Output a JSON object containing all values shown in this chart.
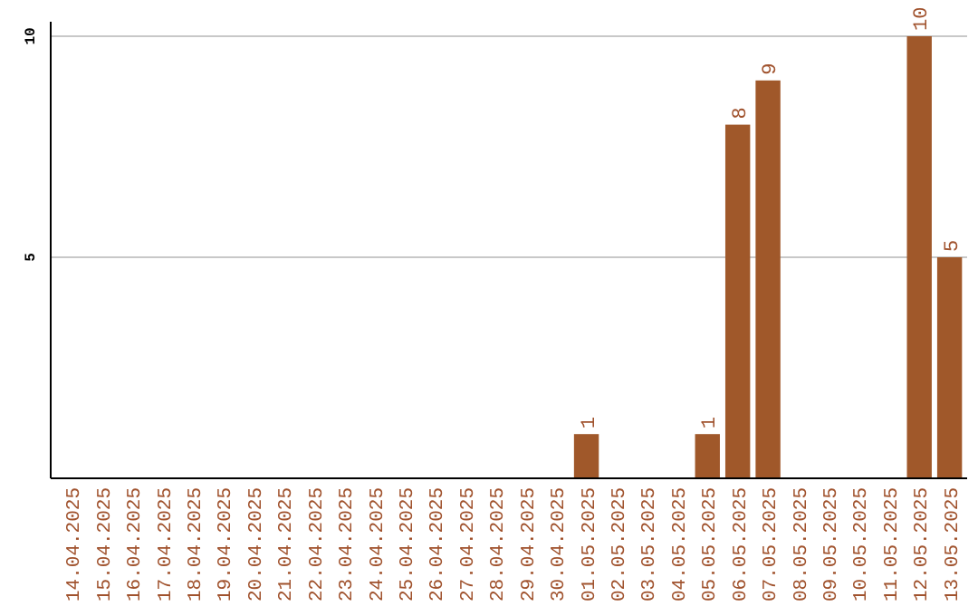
{
  "chart_data": {
    "type": "bar",
    "categories": [
      "14.04.2025",
      "15.04.2025",
      "16.04.2025",
      "17.04.2025",
      "18.04.2025",
      "19.04.2025",
      "20.04.2025",
      "21.04.2025",
      "22.04.2025",
      "23.04.2025",
      "24.04.2025",
      "25.04.2025",
      "26.04.2025",
      "27.04.2025",
      "28.04.2025",
      "29.04.2025",
      "30.04.2025",
      "01.05.2025",
      "02.05.2025",
      "03.05.2025",
      "04.05.2025",
      "05.05.2025",
      "06.05.2025",
      "07.05.2025",
      "08.05.2025",
      "09.05.2025",
      "10.05.2025",
      "11.05.2025",
      "12.05.2025",
      "13.05.2025"
    ],
    "values": [
      0,
      0,
      0,
      0,
      0,
      0,
      0,
      0,
      0,
      0,
      0,
      0,
      0,
      0,
      0,
      0,
      0,
      1,
      0,
      0,
      0,
      1,
      8,
      9,
      0,
      0,
      0,
      0,
      10,
      5
    ],
    "value_labels": [
      null,
      null,
      null,
      null,
      null,
      null,
      null,
      null,
      null,
      null,
      null,
      null,
      null,
      null,
      null,
      null,
      null,
      "1",
      null,
      null,
      null,
      "1",
      "8",
      "9",
      null,
      null,
      null,
      null,
      "10",
      "5"
    ],
    "color": "#a0582a",
    "ylim": [
      0,
      10
    ],
    "yticks": [
      5,
      10
    ],
    "grid": "y"
  }
}
